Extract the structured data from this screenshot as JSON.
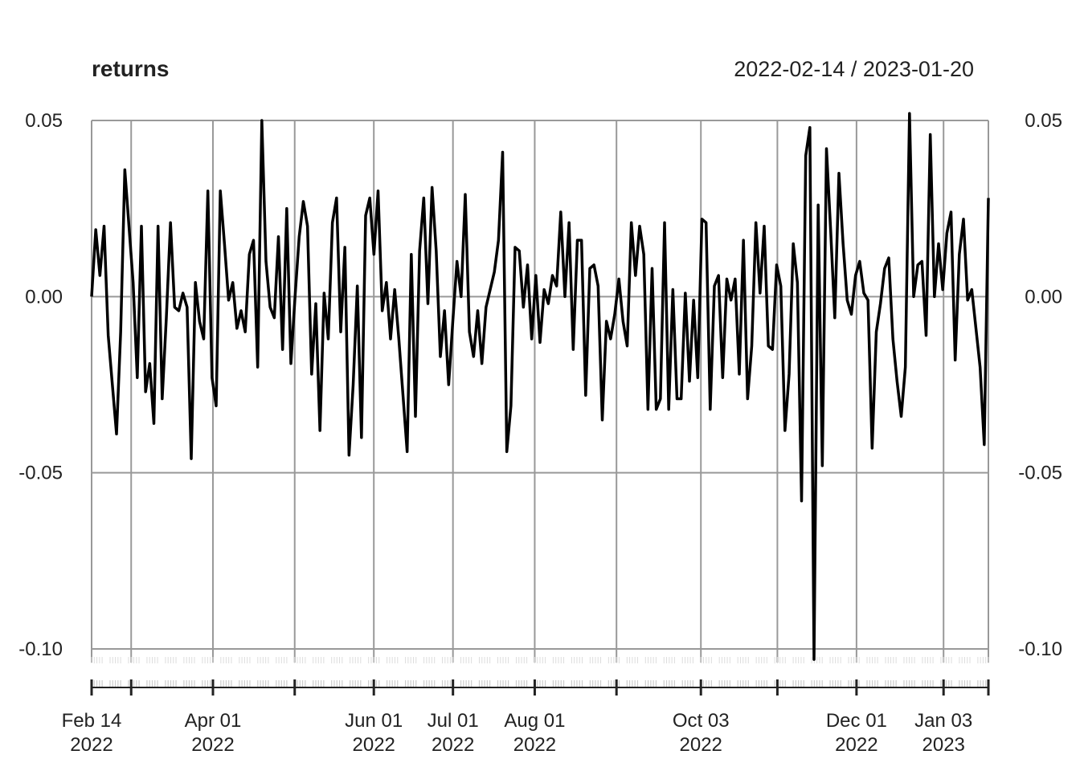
{
  "chart_data": {
    "type": "line",
    "title": "returns",
    "date_range": "2022-02-14 / 2023-01-20",
    "x_start": "2022-02-14",
    "x_end": "2023-01-20",
    "ylim": [
      -0.105,
      0.05
    ],
    "y_ticks": [
      {
        "value": 0.05,
        "label": "0.05"
      },
      {
        "value": 0.0,
        "label": "0.00"
      },
      {
        "value": -0.05,
        "label": "-0.05"
      },
      {
        "value": -0.1,
        "label": "-0.10"
      }
    ],
    "x_ticks": [
      {
        "date": "2022-02-14",
        "label": "Feb 14",
        "year": "2022"
      },
      {
        "date": "2022-03-01",
        "label": "",
        "year": ""
      },
      {
        "date": "2022-04-01",
        "label": "Apr 01",
        "year": "2022"
      },
      {
        "date": "2022-05-02",
        "label": "",
        "year": ""
      },
      {
        "date": "2022-06-01",
        "label": "Jun 01",
        "year": "2022"
      },
      {
        "date": "2022-07-01",
        "label": "Jul 01",
        "year": "2022"
      },
      {
        "date": "2022-08-01",
        "label": "Aug 01",
        "year": "2022"
      },
      {
        "date": "2022-09-01",
        "label": "",
        "year": ""
      },
      {
        "date": "2022-10-03",
        "label": "Oct 03",
        "year": "2022"
      },
      {
        "date": "2022-11-01",
        "label": "",
        "year": ""
      },
      {
        "date": "2022-12-01",
        "label": "Dec 01",
        "year": "2022"
      },
      {
        "date": "2023-01-03",
        "label": "Jan 03",
        "year": "2023"
      },
      {
        "date": "2023-01-20",
        "label": "",
        "year": ""
      }
    ],
    "grid": true,
    "series": [
      {
        "values": [
          0.0,
          0.019,
          0.006,
          0.02,
          -0.011,
          -0.025,
          -0.039,
          -0.01,
          0.036,
          0.02,
          0.004,
          -0.023,
          0.02,
          -0.027,
          -0.019,
          -0.036,
          0.02,
          -0.029,
          -0.006,
          0.021,
          -0.003,
          -0.004,
          0.001,
          -0.003,
          -0.046,
          0.004,
          -0.007,
          -0.012,
          0.03,
          -0.023,
          -0.031,
          0.03,
          0.015,
          -0.001,
          0.004,
          -0.009,
          -0.004,
          -0.01,
          0.012,
          0.016,
          -0.02,
          0.05,
          0.01,
          -0.003,
          -0.006,
          0.017,
          -0.015,
          0.025,
          -0.019,
          0.0,
          0.017,
          0.027,
          0.02,
          -0.022,
          -0.002,
          -0.038,
          0.001,
          -0.012,
          0.021,
          0.028,
          -0.01,
          0.014,
          -0.045,
          -0.025,
          0.003,
          -0.04,
          0.023,
          0.028,
          0.012,
          0.03,
          -0.004,
          0.004,
          -0.012,
          0.002,
          -0.012,
          -0.028,
          -0.044,
          0.012,
          -0.034,
          0.013,
          0.028,
          -0.002,
          0.031,
          0.013,
          -0.017,
          -0.004,
          -0.025,
          -0.007,
          0.01,
          0.0,
          0.029,
          -0.01,
          -0.017,
          -0.004,
          -0.019,
          -0.003,
          0.002,
          0.007,
          0.016,
          0.041,
          -0.044,
          -0.031,
          0.014,
          0.013,
          -0.003,
          0.009,
          -0.012,
          0.006,
          -0.013,
          0.002,
          -0.002,
          0.006,
          0.003,
          0.024,
          0.0,
          0.021,
          -0.015,
          0.016,
          0.016,
          -0.028,
          0.008,
          0.009,
          0.003,
          -0.035,
          -0.007,
          -0.012,
          -0.005,
          0.005,
          -0.007,
          -0.014,
          0.021,
          0.006,
          0.02,
          0.012,
          -0.032,
          0.008,
          -0.032,
          -0.029,
          0.021,
          -0.032,
          0.002,
          -0.029,
          -0.029,
          0.001,
          -0.024,
          -0.001,
          -0.023,
          0.022,
          0.021,
          -0.032,
          0.003,
          0.006,
          -0.023,
          0.005,
          -0.001,
          0.005,
          -0.022,
          0.016,
          -0.029,
          -0.014,
          0.021,
          0.001,
          0.02,
          -0.014,
          -0.015,
          0.009,
          0.003,
          -0.038,
          -0.022,
          0.015,
          0.004,
          -0.058,
          0.04,
          0.048,
          -0.103,
          0.026,
          -0.048,
          0.042,
          0.019,
          -0.006,
          0.035,
          0.015,
          -0.001,
          -0.005,
          0.006,
          0.01,
          0.001,
          -0.001,
          -0.043,
          -0.01,
          -0.002,
          0.008,
          0.011,
          -0.012,
          -0.024,
          -0.034,
          -0.02,
          0.052,
          0.0,
          0.009,
          0.01,
          -0.011,
          0.046,
          0.0,
          0.015,
          0.002,
          0.018,
          0.024,
          -0.018,
          0.012,
          0.022,
          -0.001,
          0.002,
          -0.009,
          -0.02,
          -0.042,
          0.028
        ]
      }
    ]
  }
}
